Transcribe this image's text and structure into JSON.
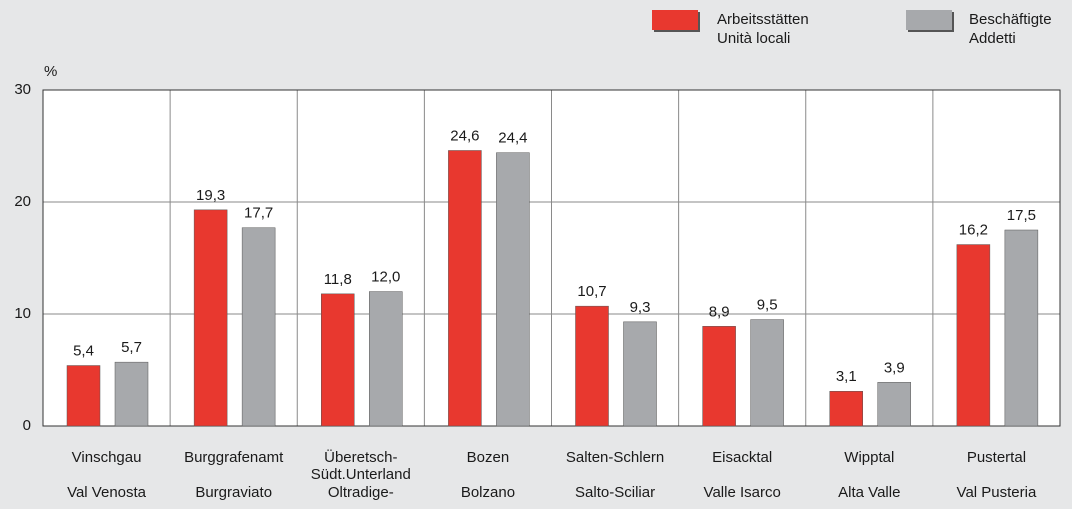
{
  "chart_data": {
    "type": "bar",
    "y_label": "%",
    "categories": [
      [
        "Vinschgau",
        "Val Venosta"
      ],
      [
        "Burggrafenamt",
        "Burgraviato"
      ],
      [
        "Überetsch-",
        "Südt.Unterland",
        "Oltradige-"
      ],
      [
        "Bozen",
        "Bolzano"
      ],
      [
        "Salten-Schlern",
        "Salto-Sciliar"
      ],
      [
        "Eisacktal",
        "Valle Isarco"
      ],
      [
        "Wipptal",
        "Alta Valle"
      ],
      [
        "Pustertal",
        "Val Pusteria"
      ]
    ],
    "series": [
      {
        "name": [
          "Arbeitsstätten",
          "Unità locali"
        ],
        "color": "#e8382f",
        "values": [
          5.4,
          19.3,
          11.8,
          24.6,
          10.7,
          8.9,
          3.1,
          16.2
        ],
        "value_labels": [
          "5,4",
          "19,3",
          "11,8",
          "24,6",
          "10,7",
          "8,9",
          "3,1",
          "16,2"
        ]
      },
      {
        "name": [
          "Beschäftigte",
          "Addetti"
        ],
        "color": "#a7a9ac",
        "values": [
          5.7,
          17.7,
          12.0,
          24.4,
          9.3,
          9.5,
          3.9,
          17.5
        ],
        "value_labels": [
          "5,7",
          "17,7",
          "12,0",
          "24,4",
          "9,3",
          "9,5",
          "3,9",
          "17,5"
        ]
      }
    ],
    "ylim": [
      0,
      30
    ],
    "yticks": [
      0,
      10,
      20,
      30
    ],
    "grid": true
  }
}
